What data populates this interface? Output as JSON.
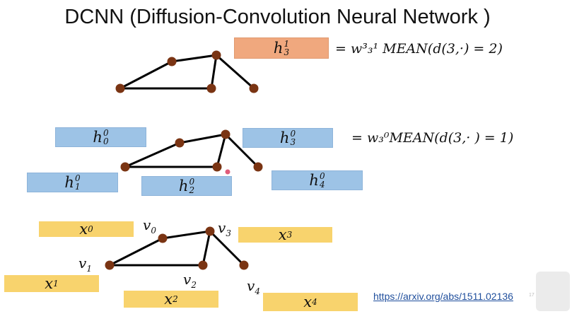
{
  "title": "DCNN (Diffusion-Convolution Neural Network )",
  "top_section": {
    "label": "h",
    "label_sup": "1",
    "label_sub": "3",
    "equation": "= w³₃¹ MEAN(d(3,·) = 2)"
  },
  "middle_section": {
    "boxes": [
      {
        "sup": "0",
        "sub": "0"
      },
      {
        "sup": "0",
        "sub": "3"
      },
      {
        "sup": "0",
        "sub": "1"
      },
      {
        "sup": "0",
        "sub": "2"
      },
      {
        "sup": "0",
        "sub": "4"
      }
    ],
    "equation": "= w₃⁰MEAN(d(3,· ) = 1)"
  },
  "bottom_section": {
    "features": [
      "x",
      "x",
      "x",
      "x",
      "x"
    ],
    "feature_subs": [
      "0",
      "3",
      "1",
      "2",
      "4"
    ],
    "vertex_labels": [
      "v",
      "v",
      "v",
      "v",
      "v"
    ],
    "vertex_subs": [
      "0",
      "3",
      "1",
      "2",
      "4"
    ]
  },
  "link": "https://arxiv.org/abs/1511.02136",
  "page_number": "17",
  "colors": {
    "node": "#7a3413",
    "edge": "#000000",
    "blue_box": "#9dc3e6",
    "orange_box": "#f0a87e",
    "yellow_box": "#f8d36d",
    "link": "#1f4e9c"
  }
}
